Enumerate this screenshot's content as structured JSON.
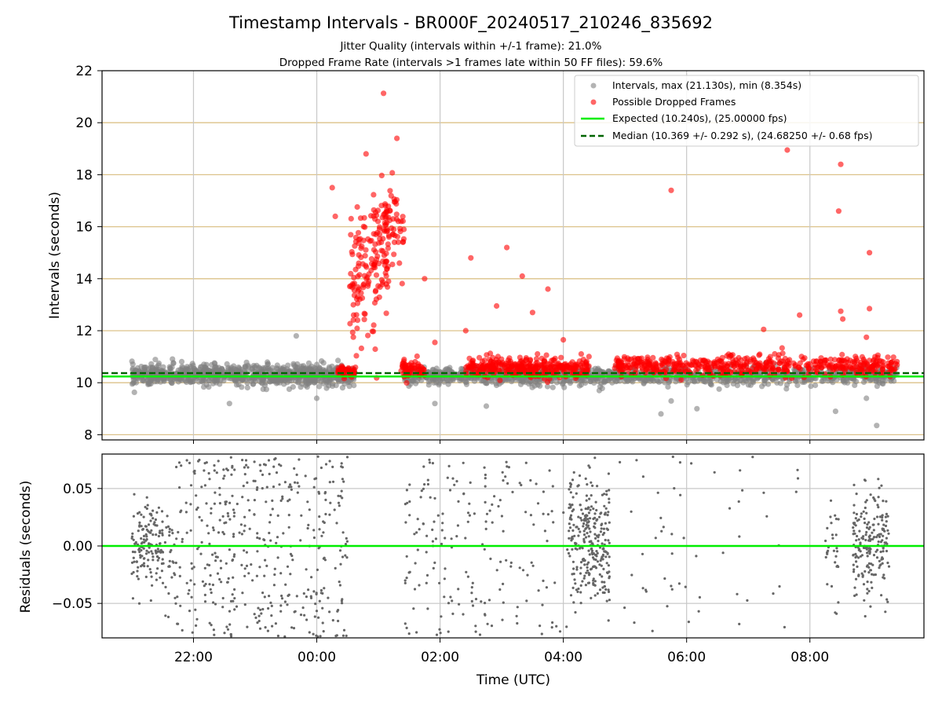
{
  "figure": {
    "title": "Timestamp Intervals - BR000F_20240517_210246_835692",
    "subtitle1": "Jitter Quality (intervals within +/-1 frame): 21.0%",
    "subtitle2": "Dropped Frame Rate (intervals >1 frames late within 50 FF files): 59.6%",
    "xlabel": "Time (UTC)"
  },
  "colors": {
    "intervals": "#808080",
    "dropped": "#ff0000",
    "expected": "#00ee00",
    "median": "#006400",
    "hgrid": "#dcc28a",
    "vgrid": "#c8c8c8",
    "residuals": "#666666"
  },
  "chart_data": [
    {
      "type": "scatter",
      "ylabel": "Intervals (seconds)",
      "ylim": [
        7.8,
        22
      ],
      "yticks": [
        8,
        10,
        12,
        14,
        16,
        18,
        20,
        22
      ],
      "xlim": [
        "20:31",
        "09:51"
      ],
      "xticks": [
        "22:00",
        "00:00",
        "02:00",
        "04:00",
        "06:00",
        "08:00"
      ],
      "grid": "on",
      "legend_position": "top-right",
      "legend": [
        "Intervals, max (21.130s), min (8.354s)",
        "Possible Dropped Frames",
        "Expected (10.240s), (25.00000 fps)",
        "Median (10.369 +/- 0.292 s), (24.68250 +/- 0.68 fps)"
      ],
      "reference_lines": {
        "expected": 10.24,
        "median": 10.369
      },
      "series": [
        {
          "name": "Intervals, max (21.130s), min (8.354s)",
          "clusters": [
            {
              "x_start": "21:00",
              "x_end": "00:37",
              "y_center": 10.3,
              "y_spread": 0.35,
              "count": 900
            },
            {
              "x_start": "01:25",
              "x_end": "04:25",
              "y_center": 10.25,
              "y_spread": 0.3,
              "count": 500
            },
            {
              "x_start": "04:25",
              "x_end": "09:25",
              "y_center": 10.25,
              "y_spread": 0.3,
              "count": 700
            }
          ],
          "points": [
            {
              "x": "23:40",
              "y": 11.8
            },
            {
              "x": "05:45",
              "y": 9.3
            },
            {
              "x": "05:35",
              "y": 8.8
            },
            {
              "x": "06:10",
              "y": 9.0
            },
            {
              "x": "08:25",
              "y": 8.9
            },
            {
              "x": "08:55",
              "y": 9.4
            },
            {
              "x": "09:05",
              "y": 8.354
            },
            {
              "x": "01:55",
              "y": 9.2
            },
            {
              "x": "02:45",
              "y": 9.1
            },
            {
              "x": "00:00",
              "y": 9.4
            },
            {
              "x": "22:35",
              "y": 9.2
            }
          ]
        },
        {
          "name": "Possible Dropped Frames",
          "clusters": [
            {
              "x_start": "00:20",
              "x_end": "00:38",
              "y_center": 10.45,
              "y_spread": 0.25,
              "count": 50
            },
            {
              "x_start": "00:32",
              "x_end": "01:10",
              "y_center": 14.2,
              "y_spread": 2.2,
              "count": 120
            },
            {
              "x_start": "00:55",
              "x_end": "01:25",
              "y_center": 16.0,
              "y_spread": 1.5,
              "count": 90
            },
            {
              "x_start": "01:22",
              "x_end": "01:45",
              "y_center": 10.55,
              "y_spread": 0.3,
              "count": 60
            },
            {
              "x_start": "02:25",
              "x_end": "04:25",
              "y_center": 10.6,
              "y_spread": 0.35,
              "count": 320
            },
            {
              "x_start": "04:50",
              "x_end": "09:25",
              "y_center": 10.65,
              "y_spread": 0.35,
              "count": 520
            }
          ],
          "points": [
            {
              "x": "00:15",
              "y": 17.5
            },
            {
              "x": "00:18",
              "y": 16.4
            },
            {
              "x": "01:05",
              "y": 21.13
            },
            {
              "x": "01:18",
              "y": 19.4
            },
            {
              "x": "00:48",
              "y": 18.8
            },
            {
              "x": "01:45",
              "y": 14.0
            },
            {
              "x": "02:30",
              "y": 14.8
            },
            {
              "x": "03:05",
              "y": 15.2
            },
            {
              "x": "03:20",
              "y": 14.1
            },
            {
              "x": "03:45",
              "y": 13.6
            },
            {
              "x": "02:55",
              "y": 12.95
            },
            {
              "x": "03:30",
              "y": 12.7
            },
            {
              "x": "02:25",
              "y": 12.0
            },
            {
              "x": "01:55",
              "y": 11.55
            },
            {
              "x": "05:45",
              "y": 17.4
            },
            {
              "x": "07:38",
              "y": 18.95
            },
            {
              "x": "08:30",
              "y": 18.4
            },
            {
              "x": "08:28",
              "y": 16.6
            },
            {
              "x": "08:58",
              "y": 15.0
            },
            {
              "x": "08:58",
              "y": 12.85
            },
            {
              "x": "07:50",
              "y": 12.6
            },
            {
              "x": "08:30",
              "y": 12.75
            },
            {
              "x": "08:32",
              "y": 12.45
            },
            {
              "x": "07:15",
              "y": 12.05
            },
            {
              "x": "04:00",
              "y": 11.65
            },
            {
              "x": "08:55",
              "y": 11.75
            }
          ]
        }
      ]
    },
    {
      "type": "scatter",
      "ylabel": "Residuals (seconds)",
      "ylim": [
        -0.08,
        0.08
      ],
      "yticks": [
        0.05,
        0.0,
        -0.05
      ],
      "yticklabels": [
        "0.05",
        "0.00",
        "−0.05"
      ],
      "xlim": [
        "20:31",
        "09:51"
      ],
      "xticks": [
        "22:00",
        "00:00",
        "02:00",
        "04:00",
        "06:00",
        "08:00"
      ],
      "grid": "on",
      "reference_lines": {
        "zero": 0.0
      },
      "series": [
        {
          "name": "",
          "clusters": [
            {
              "x_start": "21:00",
              "x_end": "21:40",
              "y_center": 0.0,
              "y_spread": 0.04,
              "count": 170
            },
            {
              "x_start": "21:40",
              "x_end": "00:30",
              "y_center": 0.0,
              "y_spread": 0.08,
              "count": 430
            },
            {
              "x_start": "01:25",
              "x_end": "03:15",
              "y_center": 0.0,
              "y_spread": 0.08,
              "count": 150
            },
            {
              "x_start": "03:15",
              "x_end": "04:05",
              "y_center": 0.0,
              "y_spread": 0.08,
              "count": 40
            },
            {
              "x_start": "04:05",
              "x_end": "04:45",
              "y_center": 0.005,
              "y_spread": 0.05,
              "count": 290
            },
            {
              "x_start": "04:45",
              "x_end": "07:50",
              "y_center": 0.0,
              "y_spread": 0.08,
              "count": 55
            },
            {
              "x_start": "08:15",
              "x_end": "08:28",
              "y_center": 0.0,
              "y_spread": 0.05,
              "count": 30
            },
            {
              "x_start": "08:42",
              "x_end": "09:17",
              "y_center": 0.0,
              "y_spread": 0.045,
              "count": 200
            }
          ]
        }
      ]
    }
  ]
}
